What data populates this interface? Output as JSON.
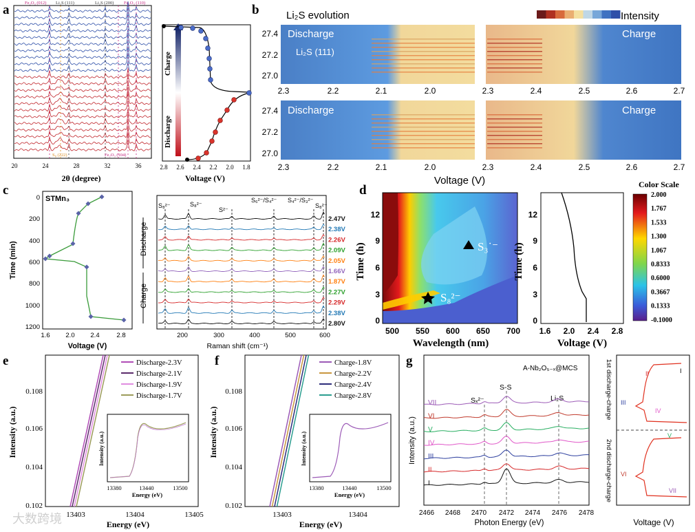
{
  "panel_letters": [
    "a",
    "b",
    "c",
    "d",
    "e",
    "f",
    "g"
  ],
  "watermark": "大数跨境",
  "a": {
    "top_labels": [
      "Fe₂O₃ (012)",
      "Li₂S (111)",
      "Li₂S (200)",
      "Fe₂O₃ (110)"
    ],
    "bottom_labels": [
      "S₈ (222)",
      "Fe₂O₃ (104)"
    ],
    "x_ticks": [
      "20",
      "24",
      "28",
      "32",
      "36"
    ],
    "x_label": "2θ (degree)",
    "v_ticks": [
      "2.8",
      "2.6",
      "2.4",
      "2.2",
      "2.0",
      "1.8"
    ],
    "v_label": "Voltage (V)",
    "charge_label": "Charge",
    "discharge_label": "Discharge"
  },
  "b": {
    "title": "Li₂S evolution",
    "intensity_label": "Intensity",
    "y_ticks": [
      "27.4",
      "27.2",
      "27.0"
    ],
    "dis_x_ticks": [
      "2.3",
      "2.2",
      "2.1",
      "2.0"
    ],
    "ch_x_ticks": [
      "2.3",
      "2.4",
      "2.5",
      "2.6",
      "2.7"
    ],
    "discharge": "Discharge",
    "charge": "Charge",
    "peak": "Li₂S (111)",
    "x_label": "Voltage (V)"
  },
  "c": {
    "sample": "STMn₃",
    "y_label": "Time (min)",
    "y_ticks": [
      "0",
      "200",
      "400",
      "600",
      "800",
      "1000",
      "1200"
    ],
    "x_ticks": [
      "1.6",
      "2.0",
      "2.4",
      "2.8"
    ],
    "x_label": "Voltage (V)",
    "raman_x_ticks": [
      "200",
      "300",
      "400",
      "500",
      "600"
    ],
    "raman_x_label": "Raman shift (cm⁻¹)",
    "peaks": [
      "S₈²⁻",
      "S₈²⁻",
      "S²⁻",
      "S₆²⁻/S₄²⁻",
      "S₄²⁻/S₃²⁻",
      "S₈²⁻"
    ],
    "discharge": "Discharge",
    "charge": "Charge",
    "voltages": [
      "2.47V",
      "2.38V",
      "2.26V",
      "2.09V",
      "2.05V",
      "1.66V",
      "1.87V",
      "2.27V",
      "2.29V",
      "2.38V",
      "2.80V"
    ],
    "colors": [
      "#111111",
      "#1f77b4",
      "#d62728",
      "#2ca02c",
      "#ff7f0e",
      "#9467bd",
      "#ff7f0e",
      "#2ca02c",
      "#d62728",
      "#1f77b4",
      "#111111"
    ]
  },
  "d": {
    "y_label": "Time (h)",
    "x_label": "Wavelength (nm)",
    "x_ticks": [
      "500",
      "550",
      "600",
      "650",
      "700"
    ],
    "y_ticks": [
      "0",
      "3",
      "6",
      "9",
      "12"
    ],
    "species1": "S₃˙⁻",
    "species2": "S₈²⁻",
    "v_x_ticks": [
      "1.6",
      "2.0",
      "2.4",
      "2.8"
    ],
    "v_label": "Voltage (V)",
    "scale_title": "Color Scale",
    "scale_ticks": [
      "2.000",
      "1.767",
      "1.533",
      "1.300",
      "1.067",
      "0.8333",
      "0.6000",
      "0.3667",
      "0.1333",
      "-0.1000"
    ]
  },
  "e": {
    "legend": [
      "Discharge-2.3V",
      "Discharge-2.1V",
      "Discharge-1.9V",
      "Discharge-1.7V"
    ],
    "colors": [
      "#b04bb6",
      "#5a2a6a",
      "#e08ce0",
      "#9b9b5a"
    ],
    "y_ticks": [
      "0.108",
      "0.106",
      "0.104",
      "0.102"
    ],
    "x_ticks": [
      "13403",
      "13404",
      "13405"
    ],
    "y_label": "Intensity (a.u.)",
    "x_label": "Energy (eV)",
    "inset_x_ticks": [
      "13380",
      "13440",
      "13500"
    ],
    "inset_y_label": "Intensity (a.u.)",
    "inset_x_label": "Energy (eV)"
  },
  "f": {
    "legend": [
      "Charge-1.8V",
      "Charge-2.2V",
      "Charge-2.4V",
      "Charge-2.8V"
    ],
    "colors": [
      "#9b59b6",
      "#c8963e",
      "#2c2c7a",
      "#2a9d8f"
    ],
    "y_ticks": [
      "0.108",
      "0.106",
      "0.104",
      "0.102"
    ],
    "x_ticks": [
      "13403",
      "13404"
    ],
    "y_label": "Intensity (a.u.)",
    "x_label": "Energy (eV)",
    "inset_x_ticks": [
      "13380",
      "13440",
      "13500"
    ],
    "inset_y_label": "Intensity (a.u.)",
    "inset_x_label": "Energy (eV)"
  },
  "g": {
    "title": "A-Nb₂O₅₋ₓ@MCS",
    "y_label": "Intensity (a.u.)",
    "x_label": "Photon Energy (eV)",
    "x_ticks": [
      "2466",
      "2468",
      "2470",
      "2472",
      "2474",
      "2476",
      "2478"
    ],
    "peak_labels": [
      "Sₓ²⁻",
      "S-S",
      "Li₂S"
    ],
    "stages": [
      "VII",
      "VI",
      "V",
      "IV",
      "III",
      "II",
      "I"
    ],
    "stage_colors": [
      "#9b59b6",
      "#c0392b",
      "#27ae60",
      "#e056c8",
      "#2c3e9e",
      "#d62728",
      "#111111"
    ],
    "right_labels": [
      "1st discharge-charge",
      "2nd discharge-charge"
    ],
    "right_x_label": "Voltage (V)"
  },
  "chart_data": [
    {
      "type": "heatmap",
      "panel": "b",
      "title": "Li₂S evolution",
      "xlabel": "Voltage (V)",
      "ylim": [
        26.9,
        27.5
      ],
      "xlim_discharge": [
        2.3,
        2.0
      ],
      "xlim_charge": [
        2.3,
        2.7
      ]
    },
    {
      "type": "line",
      "panel": "c",
      "ylabel": "Time (min)",
      "xlabel": "Voltage (V)",
      "x": [
        2.47,
        2.38,
        2.26,
        2.09,
        2.05,
        1.66,
        1.87,
        2.27,
        2.29,
        2.38,
        2.8
      ],
      "y": [
        0,
        40,
        120,
        180,
        450,
        560,
        570,
        800,
        910,
        1070,
        1130
      ]
    },
    {
      "type": "heatmap",
      "panel": "d",
      "xlabel": "Wavelength (nm)",
      "ylabel": "Time (h)",
      "xlim": [
        480,
        700
      ],
      "ylim": [
        0,
        14
      ],
      "colorbar": [
        -0.1,
        2.0
      ]
    },
    {
      "type": "line",
      "panel": "e",
      "series": [
        {
          "name": "Discharge-2.3V"
        },
        {
          "name": "Discharge-2.1V"
        },
        {
          "name": "Discharge-1.9V"
        },
        {
          "name": "Discharge-1.7V"
        }
      ],
      "xlabel": "Energy (eV)",
      "ylabel": "Intensity (a.u.)"
    },
    {
      "type": "line",
      "panel": "f",
      "series": [
        {
          "name": "Charge-1.8V"
        },
        {
          "name": "Charge-2.2V"
        },
        {
          "name": "Charge-2.4V"
        },
        {
          "name": "Charge-2.8V"
        }
      ],
      "xlabel": "Energy (eV)",
      "ylabel": "Intensity (a.u.)"
    },
    {
      "type": "line",
      "panel": "g",
      "series": [
        {
          "name": "VII"
        },
        {
          "name": "VI"
        },
        {
          "name": "V"
        },
        {
          "name": "IV"
        },
        {
          "name": "III"
        },
        {
          "name": "II"
        },
        {
          "name": "I"
        }
      ],
      "xlabel": "Photon Energy (eV)",
      "xlim": [
        2466,
        2478
      ]
    }
  ]
}
